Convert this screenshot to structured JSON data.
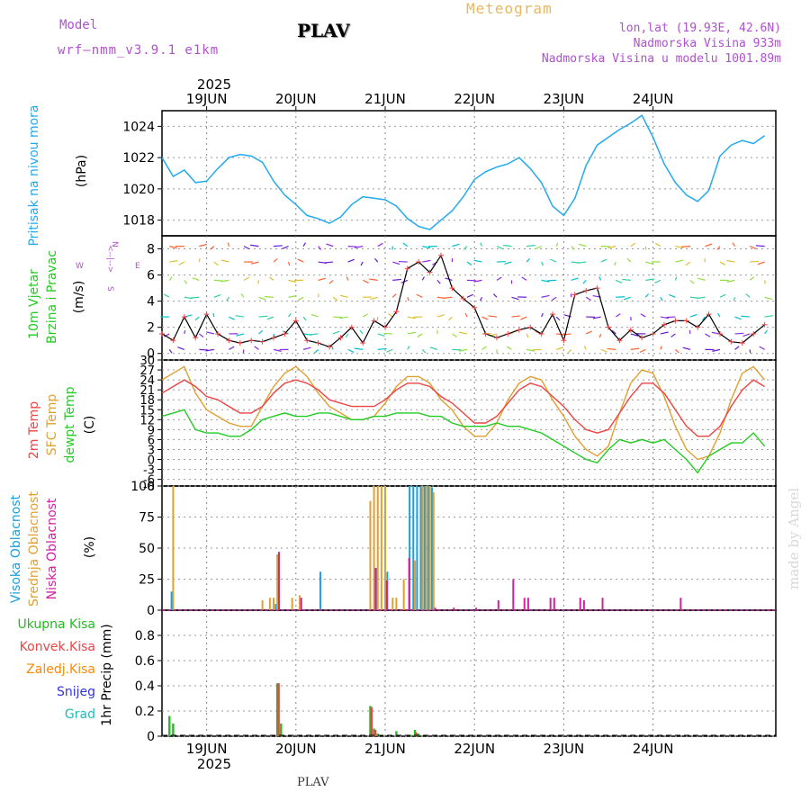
{
  "header": {
    "model_label": "Model",
    "model_name": "wrf–nmm_v3.9.1  e1km",
    "title": "PLAV",
    "meteogram_label": "Meteogram",
    "coords": "lon,lat (19.93E, 42.6N)",
    "elevation": "Nadmorska Visina 933m",
    "model_elevation": "Nadmorska Visina u modelu 1001.89m"
  },
  "footer": {
    "station": "PLAV",
    "credit": "made by Angel"
  },
  "colors": {
    "pressure": "#22aaee",
    "temp2m": "#ee4444",
    "sfc_temp": "#e0a030",
    "dewpt": "#22cc22",
    "high_cloud": "#1aa0e0",
    "mid_cloud": "#e0a030",
    "low_cloud": "#d020a0",
    "total_precip": "#22bb22",
    "conv_precip": "#ee4444",
    "frozen_precip": "#ff8800",
    "snow": "#3333dd",
    "graupel": "#22bbbb"
  },
  "chart_data": [
    {
      "type": "line",
      "panel": "pressure",
      "ylabel_colored": "Pritisak na nivou mora",
      "unit": "(hPa)",
      "ylim": [
        1017,
        1025
      ],
      "yticks": [
        "1018",
        "1020",
        "1022",
        "1024"
      ],
      "x_unit": "hours since 2025-06-18 12:00",
      "series": [
        {
          "x": [
            0,
            3,
            6,
            9,
            12,
            15,
            18,
            21,
            24,
            27,
            30,
            33,
            36,
            39,
            42,
            45,
            48,
            51,
            54,
            57,
            60,
            63,
            66,
            69,
            72,
            75,
            78,
            81,
            84,
            87,
            90,
            93,
            96,
            99,
            102,
            105,
            108,
            111,
            114,
            117,
            120,
            123,
            126,
            129,
            132,
            135,
            138,
            141,
            144,
            147,
            150,
            153,
            156,
            159,
            162
          ],
          "values": [
            1022.0,
            1020.8,
            1021.2,
            1020.4,
            1020.5,
            1021.3,
            1022.0,
            1022.2,
            1022.1,
            1021.7,
            1020.5,
            1019.6,
            1019.0,
            1018.3,
            1018.1,
            1017.8,
            1018.2,
            1019.0,
            1019.5,
            1019.4,
            1019.3,
            1018.9,
            1018.1,
            1017.6,
            1017.4,
            1018.0,
            1018.6,
            1019.5,
            1020.6,
            1021.1,
            1021.4,
            1021.6,
            1022.0,
            1021.3,
            1020.4,
            1018.9,
            1018.3,
            1019.4,
            1021.5,
            1022.8,
            1023.3,
            1023.8,
            1024.2,
            1024.7,
            1023.3,
            1021.6,
            1020.4,
            1019.6,
            1019.2,
            1019.9,
            1022.1,
            1022.8,
            1023.1,
            1022.9,
            1023.4
          ]
        }
      ]
    },
    {
      "type": "line",
      "panel": "wind",
      "ylabel_colored": "10m Vjetar Brzina i Pravac",
      "unit": "(m/s)",
      "direction_legend": [
        "N",
        "<--|-->",
        "W",
        "E",
        "S"
      ],
      "ylim": [
        -0.5,
        9
      ],
      "yticks": [
        "0",
        "2",
        "4",
        "6",
        "8"
      ],
      "series": [
        {
          "name": "speed",
          "x": [
            0,
            3,
            6,
            9,
            12,
            15,
            18,
            21,
            24,
            27,
            30,
            33,
            36,
            39,
            42,
            45,
            48,
            51,
            54,
            57,
            60,
            63,
            66,
            69,
            72,
            75,
            78,
            81,
            84,
            87,
            90,
            93,
            96,
            99,
            102,
            105,
            108,
            111,
            114,
            117,
            120,
            123,
            126,
            129,
            132,
            135,
            138,
            141,
            144,
            147,
            150,
            153,
            156,
            159,
            162
          ],
          "values": [
            1.5,
            1.0,
            2.8,
            1.2,
            3.0,
            1.5,
            1.0,
            0.8,
            1.0,
            0.9,
            1.2,
            1.5,
            2.5,
            1.0,
            0.8,
            0.5,
            1.2,
            2.0,
            0.8,
            2.5,
            2.0,
            3.2,
            6.5,
            7.0,
            6.2,
            7.5,
            5.0,
            4.2,
            3.5,
            1.5,
            1.2,
            1.5,
            1.8,
            2.0,
            1.5,
            3.0,
            1.0,
            4.5,
            4.8,
            5.0,
            2.0,
            1.0,
            1.8,
            1.2,
            1.5,
            2.2,
            2.5,
            2.5,
            2.0,
            3.0,
            1.5,
            0.9,
            0.8,
            1.5,
            2.2
          ]
        }
      ]
    },
    {
      "type": "line",
      "panel": "temperature",
      "unit": "(C)",
      "ylim": [
        -8,
        30
      ],
      "yticks": [
        "30",
        "27",
        "24",
        "21",
        "18",
        "15",
        "12",
        "9",
        "6",
        "3",
        "0",
        "-3",
        "-6",
        "-8"
      ],
      "series": [
        {
          "name": "2m Temp",
          "x": [
            0,
            3,
            6,
            9,
            12,
            15,
            18,
            21,
            24,
            27,
            30,
            33,
            36,
            39,
            42,
            45,
            48,
            51,
            54,
            57,
            60,
            63,
            66,
            69,
            72,
            75,
            78,
            81,
            84,
            87,
            90,
            93,
            96,
            99,
            102,
            105,
            108,
            111,
            114,
            117,
            120,
            123,
            126,
            129,
            132,
            135,
            138,
            141,
            144,
            147,
            150,
            153,
            156,
            159,
            162
          ],
          "values": [
            20,
            22,
            24,
            22,
            19,
            18,
            16,
            14,
            14,
            16,
            20,
            23,
            24,
            23,
            21,
            18,
            17,
            16,
            16,
            16,
            18,
            21,
            23,
            23,
            22,
            19,
            17,
            14,
            11,
            11,
            13,
            17,
            21,
            23,
            22,
            19,
            16,
            12,
            9,
            8,
            9,
            14,
            19,
            23,
            23,
            20,
            15,
            10,
            7,
            7,
            10,
            16,
            21,
            24,
            22
          ]
        },
        {
          "name": "SFC Temp",
          "x": [
            0,
            3,
            6,
            9,
            12,
            15,
            18,
            21,
            24,
            27,
            30,
            33,
            36,
            39,
            42,
            45,
            48,
            51,
            54,
            57,
            60,
            63,
            66,
            69,
            72,
            75,
            78,
            81,
            84,
            87,
            90,
            93,
            96,
            99,
            102,
            105,
            108,
            111,
            114,
            117,
            120,
            123,
            126,
            129,
            132,
            135,
            138,
            141,
            144,
            147,
            150,
            153,
            156,
            159,
            162
          ],
          "values": [
            24,
            26,
            28,
            20,
            15,
            13,
            11,
            10,
            10,
            16,
            22,
            26,
            28,
            25,
            20,
            16,
            14,
            12,
            12,
            13,
            17,
            22,
            25,
            25,
            23,
            18,
            15,
            10,
            7,
            7,
            11,
            18,
            23,
            25,
            24,
            18,
            13,
            7,
            3,
            1,
            4,
            14,
            23,
            27,
            26,
            19,
            10,
            3,
            0,
            1,
            8,
            18,
            26,
            28,
            24
          ]
        },
        {
          "name": "dewpt Temp",
          "x": [
            0,
            3,
            6,
            9,
            12,
            15,
            18,
            21,
            24,
            27,
            30,
            33,
            36,
            39,
            42,
            45,
            48,
            51,
            54,
            57,
            60,
            63,
            66,
            69,
            72,
            75,
            78,
            81,
            84,
            87,
            90,
            93,
            96,
            99,
            102,
            105,
            108,
            111,
            114,
            117,
            120,
            123,
            126,
            129,
            132,
            135,
            138,
            141,
            144,
            147,
            150,
            153,
            156,
            159,
            162
          ],
          "values": [
            13,
            14,
            15,
            9,
            8,
            8,
            7,
            7,
            9,
            12,
            13,
            14,
            13,
            13,
            14,
            14,
            13,
            12,
            12,
            13,
            13,
            14,
            14,
            14,
            13,
            13,
            11,
            10,
            10,
            10,
            11,
            10,
            10,
            9,
            8,
            6,
            4,
            2,
            0,
            -1,
            3,
            6,
            5,
            6,
            5,
            6,
            3,
            0,
            -4,
            1,
            3,
            5,
            5,
            8,
            4
          ]
        }
      ]
    },
    {
      "type": "bar",
      "panel": "cloud",
      "unit": "(%)",
      "ylim": [
        0,
        100
      ],
      "yticks": [
        "100",
        "75",
        "50",
        "25",
        "0"
      ],
      "series": [
        {
          "name": "Visoka Oblacnost",
          "points": [
            [
              3,
              15
            ],
            [
              31,
              5
            ],
            [
              43,
              31
            ],
            [
              58,
              34
            ],
            [
              61,
              31
            ],
            [
              67,
              100
            ],
            [
              68,
              100
            ],
            [
              69,
              100
            ],
            [
              70,
              100
            ],
            [
              71,
              100
            ],
            [
              72,
              100
            ],
            [
              73,
              99
            ]
          ]
        },
        {
          "name": "Srednja Oblacnost",
          "points": [
            [
              3,
              100
            ],
            [
              27,
              8
            ],
            [
              29,
              10
            ],
            [
              30,
              10
            ],
            [
              31,
              45
            ],
            [
              35,
              10
            ],
            [
              37,
              12
            ],
            [
              56,
              88
            ],
            [
              57,
              100
            ],
            [
              58,
              100
            ],
            [
              59,
              100
            ],
            [
              60,
              100
            ],
            [
              62,
              10
            ],
            [
              63,
              10
            ],
            [
              65,
              25
            ],
            [
              68,
              40
            ],
            [
              70,
              100
            ],
            [
              71,
              100
            ],
            [
              72,
              100
            ],
            [
              73,
              95
            ]
          ]
        },
        {
          "name": "Niska Oblacnost",
          "points": [
            [
              31,
              47
            ],
            [
              37,
              10
            ],
            [
              57,
              34
            ],
            [
              60,
              24
            ],
            [
              66,
              42
            ],
            [
              73,
              2
            ],
            [
              78,
              2
            ],
            [
              84,
              2
            ],
            [
              90,
              8
            ],
            [
              94,
              25
            ],
            [
              97,
              10
            ],
            [
              98,
              10
            ],
            [
              104,
              10
            ],
            [
              105,
              10
            ],
            [
              112,
              10
            ],
            [
              113,
              8
            ],
            [
              118,
              10
            ],
            [
              139,
              10
            ]
          ]
        }
      ]
    },
    {
      "type": "bar",
      "panel": "precip",
      "ylabel": "1hr Precip (mm)",
      "ylim": [
        0,
        1.0
      ],
      "yticks": [
        "0.8",
        "0.6",
        "0.4",
        "0.2",
        "0"
      ],
      "legend": [
        "Ukupna Kisa",
        "Konvek.Kisa",
        "Zaledj.Kisa",
        "Snijeg",
        "Grad"
      ],
      "series": [
        {
          "name": "Ukupna Kisa",
          "points": [
            [
              2,
              0.16
            ],
            [
              3,
              0.1
            ],
            [
              31,
              0.42
            ],
            [
              32,
              0.1
            ],
            [
              56,
              0.24
            ],
            [
              57,
              0.06
            ],
            [
              58,
              0.02
            ],
            [
              63,
              0.04
            ],
            [
              67,
              0.01
            ],
            [
              68,
              0.05
            ],
            [
              69,
              0.02
            ]
          ]
        },
        {
          "name": "Konvek.Kisa",
          "points": [
            [
              31,
              0.42
            ],
            [
              56,
              0.23
            ],
            [
              57,
              0.05
            ],
            [
              68,
              0.03
            ]
          ]
        }
      ]
    }
  ],
  "time_axis": {
    "year_top": "2025",
    "year_bottom": "2025",
    "day_labels": [
      "19JUN",
      "20JUN",
      "21JUN",
      "22JUN",
      "23JUN",
      "24JUN"
    ]
  },
  "side_labels": {
    "pressure": "Pritisak na nivou mora",
    "wind1": "10m Vjetar",
    "wind2": "Brzina i Pravac",
    "temp1": "2m Temp",
    "temp2": "SFC Temp",
    "temp3": "dewpt Temp",
    "cloud1": "Visoka Oblacnost",
    "cloud2": "Srednja Oblacnost",
    "cloud3": "Niska Oblacnost",
    "hpa": "(hPa)",
    "ms": "(m/s)",
    "c": "(C)",
    "pct": "(%)",
    "precip": "1hr Precip (mm)"
  }
}
